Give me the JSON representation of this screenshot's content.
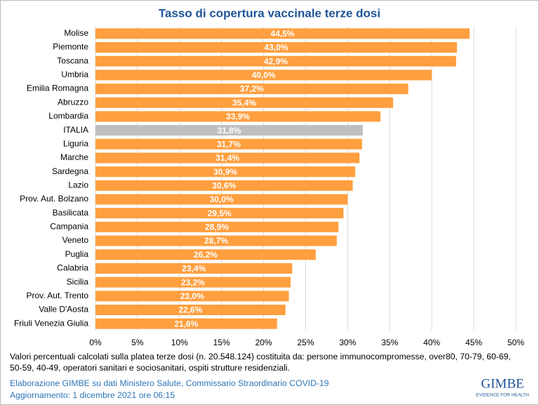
{
  "chart_data": {
    "type": "hbar",
    "title": "Tasso di copertura vaccinale terze dosi",
    "categories": [
      "Molise",
      "Piemonte",
      "Toscana",
      "Umbria",
      "Emilia Romagna",
      "Abruzzo",
      "Lombardia",
      "ITALIA",
      "Liguria",
      "Marche",
      "Sardegna",
      "Lazio",
      "Prov. Aut. Bolzano",
      "Basilicata",
      "Campania",
      "Veneto",
      "Puglia",
      "Calabria",
      "Sicilia",
      "Prov. Aut. Trento",
      "Valle D'Aosta",
      "Friuli Venezia Giulia"
    ],
    "values": [
      44.5,
      43.0,
      42.9,
      40.0,
      37.2,
      35.4,
      33.9,
      31.8,
      31.7,
      31.4,
      30.9,
      30.6,
      30.0,
      29.5,
      28.9,
      28.7,
      26.2,
      23.4,
      23.2,
      23.0,
      22.6,
      21.6
    ],
    "value_labels": [
      "44,5%",
      "43,0%",
      "42,9%",
      "40,0%",
      "37,2%",
      "35,4%",
      "33,9%",
      "31,8%",
      "31,7%",
      "31,4%",
      "30,9%",
      "30,6%",
      "30,0%",
      "29,5%",
      "28,9%",
      "28,7%",
      "26,2%",
      "23,4%",
      "23,2%",
      "23,0%",
      "22,6%",
      "21,6%"
    ],
    "colors": [
      "#ff9f3f",
      "#ff9f3f",
      "#ff9f3f",
      "#ff9f3f",
      "#ff9f3f",
      "#ff9f3f",
      "#ff9f3f",
      "#bfbfbf",
      "#ff9f3f",
      "#ff9f3f",
      "#ff9f3f",
      "#ff9f3f",
      "#ff9f3f",
      "#ff9f3f",
      "#ff9f3f",
      "#ff9f3f",
      "#ff9f3f",
      "#ff9f3f",
      "#ff9f3f",
      "#ff9f3f",
      "#ff9f3f",
      "#ff9f3f"
    ],
    "xlim": [
      0,
      50
    ],
    "xticks": [
      {
        "value": 0,
        "label": "0%"
      },
      {
        "value": 5,
        "label": "5%"
      },
      {
        "value": 10,
        "label": "10%"
      },
      {
        "value": 15,
        "label": "15%"
      },
      {
        "value": 20,
        "label": "20%"
      },
      {
        "value": 25,
        "label": "25%"
      },
      {
        "value": 30,
        "label": "30%"
      },
      {
        "value": 35,
        "label": "35%"
      },
      {
        "value": 40,
        "label": "40%"
      },
      {
        "value": 45,
        "label": "45%"
      },
      {
        "value": 50,
        "label": "50%"
      }
    ],
    "grid": true
  },
  "notes": {
    "description": "Valori percentuali calcolati sulla platea terze dosi (n. 20.548.124) costituita da: persone immunocompromesse, over80, 70-79, 60-69, 50-59, 40-49, operatori sanitari e sociosanitari, ospiti strutture residenziali.",
    "source": "Elaborazione GIMBE su dati Ministero Salute, Commissario Straordinario COVID-19",
    "updated": "Aggiornamento: 1 dicembre 2021 ore 06:15"
  },
  "logo": {
    "name": "GIMBE",
    "tagline": "EVIDENCE FOR HEALTH"
  }
}
